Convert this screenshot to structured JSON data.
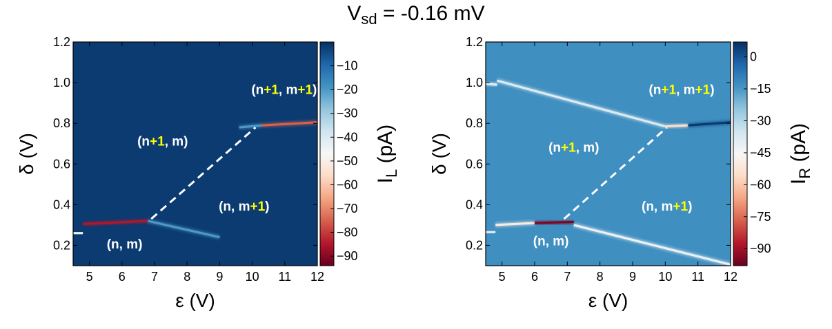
{
  "title": {
    "prefix": "V",
    "subscript": "sd",
    "suffix": " = -0.16 mV"
  },
  "chart_data": [
    {
      "type": "heatmap",
      "xlabel": "ε (V)",
      "ylabel": "δ (V)",
      "xlim": [
        4.5,
        12
      ],
      "ylim": [
        0.1,
        1.2
      ],
      "xticks": [
        "5",
        "6",
        "7",
        "8",
        "9",
        "10",
        "11",
        "12"
      ],
      "yticks": [
        "0.2",
        "0.4",
        "0.6",
        "0.8",
        "1.0",
        "1.2"
      ],
      "colorbar": {
        "label_main": "I",
        "label_sub": "L",
        "label_unit": " (pA)",
        "range": [
          -94,
          0
        ],
        "ticks": [
          "−10",
          "−20",
          "−30",
          "−40",
          "−50",
          "−60",
          "−70",
          "−80",
          "−90"
        ]
      },
      "colormap": "RdBu",
      "background_value": -2,
      "features": [
        {
          "kind": "resonance-line",
          "points": [
            [
              4.5,
              0.26
            ],
            [
              4.8,
              0.26
            ]
          ],
          "value": -45
        },
        {
          "kind": "resonance-line",
          "points": [
            [
              4.8,
              0.305
            ],
            [
              6.8,
              0.32
            ]
          ],
          "value": -85
        },
        {
          "kind": "resonance-line",
          "points": [
            [
              6.8,
              0.32
            ],
            [
              9.0,
              0.24
            ]
          ],
          "value": -20
        },
        {
          "kind": "resonance-line",
          "points": [
            [
              9.6,
              0.78
            ],
            [
              10.3,
              0.79
            ]
          ],
          "value": -20
        },
        {
          "kind": "resonance-line",
          "points": [
            [
              10.3,
              0.79
            ],
            [
              12.0,
              0.805
            ]
          ],
          "value": -75
        }
      ],
      "dashed_line": [
        [
          6.9,
          0.33
        ],
        [
          10.1,
          0.78
        ]
      ],
      "annotations": [
        {
          "parts": [
            {
              "t": "(n"
            },
            {
              "t": "+1",
              "hl": true
            },
            {
              "t": ", m"
            },
            {
              "t": "+1",
              "hl": true
            },
            {
              "t": ")"
            }
          ],
          "x": 10.98,
          "y": 0.945
        },
        {
          "parts": [
            {
              "t": "(n"
            },
            {
              "t": "+1",
              "hl": true
            },
            {
              "t": ", m)"
            }
          ],
          "x": 7.25,
          "y": 0.69
        },
        {
          "parts": [
            {
              "t": "(n, m"
            },
            {
              "t": "+1",
              "hl": true
            },
            {
              "t": ")"
            }
          ],
          "x": 9.75,
          "y": 0.37
        },
        {
          "parts": [
            {
              "t": "(n, m)"
            }
          ],
          "x": 6.08,
          "y": 0.185
        }
      ]
    },
    {
      "type": "heatmap",
      "xlabel": "ε (V)",
      "ylabel": "δ (V)",
      "xlim": [
        4.5,
        12
      ],
      "ylim": [
        0.1,
        1.2
      ],
      "xticks": [
        "5",
        "6",
        "7",
        "8",
        "9",
        "10",
        "11",
        "12"
      ],
      "yticks": [
        "0.2",
        "0.4",
        "0.6",
        "0.8",
        "1.0",
        "1.2"
      ],
      "colorbar": {
        "label_main": "I",
        "label_sub": "R",
        "label_unit": " (pA)",
        "range": [
          -98,
          7
        ],
        "ticks": [
          "0",
          "−15",
          "−30",
          "−45",
          "−60",
          "−75",
          "−90"
        ]
      },
      "colormap": "RdBu",
      "background_value": -13,
      "features": [
        {
          "kind": "resonance-line",
          "points": [
            [
              4.5,
              0.995
            ],
            [
              4.85,
              0.99
            ]
          ],
          "value": -40
        },
        {
          "kind": "resonance-line",
          "points": [
            [
              4.85,
              1.01
            ],
            [
              10.0,
              0.785
            ]
          ],
          "value": -38
        },
        {
          "kind": "resonance-line",
          "points": [
            [
              10.0,
              0.785
            ],
            [
              10.7,
              0.79
            ]
          ],
          "value": -55
        },
        {
          "kind": "resonance-line",
          "points": [
            [
              10.7,
              0.79
            ],
            [
              12.0,
              0.805
            ]
          ],
          "value": 5
        },
        {
          "kind": "resonance-line",
          "points": [
            [
              4.5,
              0.265
            ],
            [
              4.8,
              0.265
            ]
          ],
          "value": -40
        },
        {
          "kind": "resonance-line",
          "points": [
            [
              4.8,
              0.3
            ],
            [
              6.0,
              0.31
            ]
          ],
          "value": -50
        },
        {
          "kind": "resonance-line",
          "points": [
            [
              6.0,
              0.31
            ],
            [
              7.2,
              0.315
            ]
          ],
          "value": -95
        },
        {
          "kind": "resonance-line",
          "points": [
            [
              7.2,
              0.3
            ],
            [
              12.0,
              0.105
            ]
          ],
          "value": -42
        }
      ],
      "dashed_line": [
        [
          6.9,
          0.33
        ],
        [
          10.05,
          0.78
        ]
      ],
      "annotations": [
        {
          "parts": [
            {
              "t": "(n"
            },
            {
              "t": "+1",
              "hl": true
            },
            {
              "t": ", m"
            },
            {
              "t": "+1",
              "hl": true
            },
            {
              "t": ")"
            }
          ],
          "x": 10.5,
          "y": 0.945
        },
        {
          "parts": [
            {
              "t": "(n"
            },
            {
              "t": "+1",
              "hl": true
            },
            {
              "t": ", m)"
            }
          ],
          "x": 7.2,
          "y": 0.66
        },
        {
          "parts": [
            {
              "t": "(n, m"
            },
            {
              "t": "+1",
              "hl": true
            },
            {
              "t": ")"
            }
          ],
          "x": 10.05,
          "y": 0.37
        },
        {
          "parts": [
            {
              "t": "(n, m)"
            }
          ],
          "x": 6.5,
          "y": 0.2
        }
      ]
    }
  ]
}
